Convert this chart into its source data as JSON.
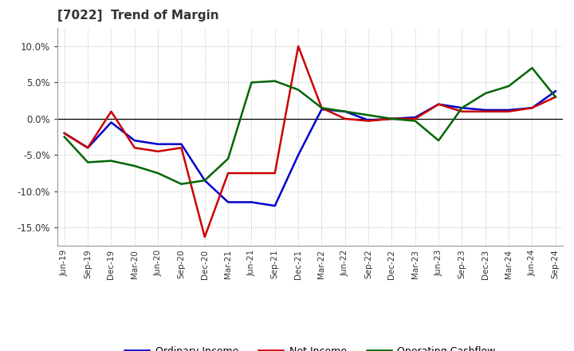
{
  "title": "[7022]  Trend of Margin",
  "x_labels": [
    "Jun-19",
    "Sep-19",
    "Dec-19",
    "Mar-20",
    "Jun-20",
    "Sep-20",
    "Dec-20",
    "Mar-21",
    "Jun-21",
    "Sep-21",
    "Dec-21",
    "Mar-22",
    "Jun-22",
    "Sep-22",
    "Dec-22",
    "Mar-23",
    "Jun-23",
    "Sep-23",
    "Dec-23",
    "Mar-24",
    "Jun-24",
    "Sep-24"
  ],
  "ordinary_income": [
    -2.0,
    -4.0,
    -0.5,
    -3.0,
    -3.5,
    -3.5,
    -8.5,
    -11.5,
    -11.5,
    -12.0,
    -5.0,
    1.3,
    1.0,
    -0.2,
    0.0,
    0.2,
    2.0,
    1.5,
    1.2,
    1.2,
    1.5,
    3.8
  ],
  "net_income": [
    -2.0,
    -4.0,
    1.0,
    -4.0,
    -4.5,
    -4.0,
    -16.3,
    -7.5,
    -7.5,
    -7.5,
    10.0,
    1.5,
    0.0,
    -0.3,
    0.0,
    0.0,
    2.0,
    1.0,
    1.0,
    1.0,
    1.5,
    3.0
  ],
  "operating_cashflow": [
    -2.5,
    -6.0,
    -5.8,
    -6.5,
    -7.5,
    -9.0,
    -8.5,
    -5.5,
    5.0,
    5.2,
    4.0,
    1.5,
    1.0,
    0.5,
    0.0,
    -0.3,
    -3.0,
    1.5,
    3.5,
    4.5,
    7.0,
    3.0
  ],
  "ylim": [
    -17.5,
    12.5
  ],
  "yticks": [
    -15.0,
    -10.0,
    -5.0,
    0.0,
    5.0,
    10.0
  ],
  "ordinary_income_color": "#0000CC",
  "net_income_color": "#CC0000",
  "operating_cashflow_color": "#006600",
  "background_color": "#FFFFFF",
  "plot_bg_color": "#FFFFFF",
  "grid_color": "#BBBBBB",
  "title_color": "#333333",
  "line_width": 1.8,
  "legend_labels": [
    "Ordinary Income",
    "Net Income",
    "Operating Cashflow"
  ]
}
